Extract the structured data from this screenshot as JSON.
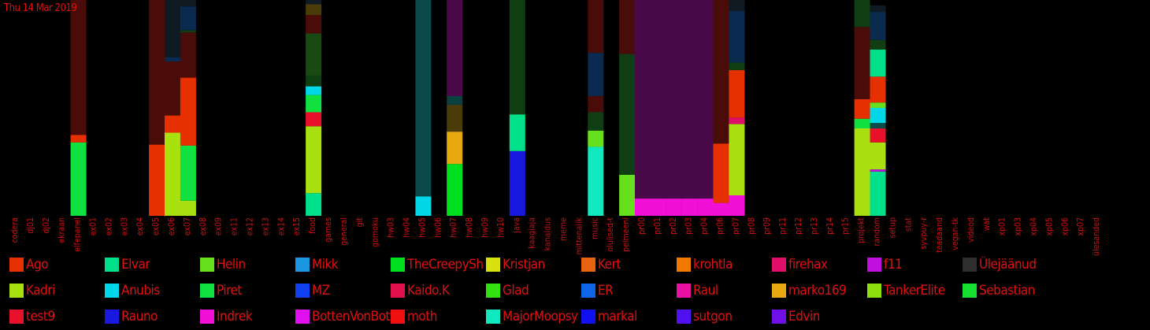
{
  "date": "Thu 14 Mar 2019",
  "chart_data": {
    "type": "bar",
    "stacked": true,
    "normalized": true,
    "ylim": [
      0,
      1
    ],
    "categories": [
      "codera",
      "dj01",
      "dj02",
      "ekraan",
      "elfepanel",
      "ex01",
      "ex02",
      "ex03",
      "ex04",
      "ex05",
      "ex06",
      "ex07",
      "ex08",
      "ex09",
      "ex11",
      "ex12",
      "ex13",
      "ex14",
      "ex15",
      "food",
      "games",
      "general",
      "git",
      "gomoku",
      "hw03",
      "hw04",
      "hw05",
      "hw06",
      "hw07",
      "hw08",
      "hw09",
      "hw10",
      "java",
      "kaagiaja",
      "kanaldus",
      "meme",
      "mittenaiik",
      "music",
      "olulised-t",
      "pelmeeni",
      "pr00",
      "pr01",
      "pr02",
      "pr03",
      "pr04",
      "pr06",
      "pr07",
      "pr08",
      "pr09",
      "pr11",
      "pr12",
      "pr13",
      "pr14",
      "pr15",
      "projekt",
      "random",
      "setup",
      "stat",
      "syvpuy-r",
      "teadaand",
      "vegan-tk",
      "videod",
      "wat",
      "xp01",
      "xp03",
      "xp04",
      "xp05",
      "xp06",
      "xp07",
      "ülesanded"
    ],
    "bars": [
      {
        "category": "elfepanel",
        "segments": [
          {
            "name": "Piret",
            "value": 0.34
          },
          {
            "name": "Ago",
            "value": 0.035
          },
          {
            "name": "(dark red)",
            "value": 0.625
          }
        ]
      },
      {
        "category": "ex05",
        "segments": [
          {
            "name": "Ago",
            "value": 0.33
          },
          {
            "name": "(dark red)",
            "value": 0.67
          }
        ]
      },
      {
        "category": "ex06",
        "segments": [
          {
            "name": "Kadri",
            "value": 0.385
          },
          {
            "name": "Ago",
            "value": 0.08
          },
          {
            "name": "(dark red)",
            "value": 0.25
          },
          {
            "name": "(navy)",
            "value": 0.02
          },
          {
            "name": "(dark)",
            "value": 0.265
          }
        ]
      },
      {
        "category": "ex07",
        "segments": [
          {
            "name": "Kadri",
            "value": 0.07
          },
          {
            "name": "Piret",
            "value": 0.255
          },
          {
            "name": "Ago",
            "value": 0.315
          },
          {
            "name": "(dark red)",
            "value": 0.21
          },
          {
            "name": "(dark green)",
            "value": 0.01
          },
          {
            "name": "(navy)",
            "value": 0.11
          },
          {
            "name": "(dark)",
            "value": 0.03
          }
        ]
      },
      {
        "category": "food",
        "segments": [
          {
            "name": "Elvar",
            "value": 0.105
          },
          {
            "name": "Kadri",
            "value": 0.31
          },
          {
            "name": "test9",
            "value": 0.065
          },
          {
            "name": "Piret",
            "value": 0.08
          },
          {
            "name": "Anubis",
            "value": 0.04
          },
          {
            "name": "(dark green)",
            "value": 0.05
          },
          {
            "name": "(dark green 2)",
            "value": 0.195
          },
          {
            "name": "(dark red)",
            "value": 0.085
          },
          {
            "name": "(olive)",
            "value": 0.05
          },
          {
            "name": "(dark)",
            "value": 0.02
          }
        ]
      },
      {
        "category": "hw05",
        "segments": [
          {
            "name": "Anubis",
            "value": 0.09
          },
          {
            "name": "(teal)",
            "value": 0.91
          }
        ]
      },
      {
        "category": "hw07",
        "segments": [
          {
            "name": "TheCreepySh",
            "value": 0.24
          },
          {
            "name": "marko169",
            "value": 0.15
          },
          {
            "name": "(olive)",
            "value": 0.125
          },
          {
            "name": "(dark teal)",
            "value": 0.04
          },
          {
            "name": "(purple)",
            "value": 0.445
          }
        ]
      },
      {
        "category": "java",
        "segments": [
          {
            "name": "Rauno",
            "value": 0.3
          },
          {
            "name": "Elvar",
            "value": 0.17
          },
          {
            "name": "(dark green)",
            "value": 0.53
          }
        ]
      },
      {
        "category": "music",
        "segments": [
          {
            "name": "MajorMoopsy",
            "value": 0.32
          },
          {
            "name": "Helin",
            "value": 0.075
          },
          {
            "name": "(dark green)",
            "value": 0.085
          },
          {
            "name": "(dark red)",
            "value": 0.075
          },
          {
            "name": "(navy)",
            "value": 0.2
          },
          {
            "name": "(dark red)",
            "value": 0.245
          }
        ]
      },
      {
        "category": "pelmeeni",
        "segments": [
          {
            "name": "Helin",
            "value": 0.19
          },
          {
            "name": "(dark green)",
            "value": 0.56
          },
          {
            "name": "(dark red)",
            "value": 0.25
          }
        ]
      },
      {
        "category": "pr00",
        "segments": [
          {
            "name": "Indrek",
            "value": 0.08
          },
          {
            "name": "(purple)",
            "value": 0.92
          }
        ]
      },
      {
        "category": "pr01",
        "segments": [
          {
            "name": "Indrek",
            "value": 0.08
          },
          {
            "name": "(purple)",
            "value": 0.92
          }
        ]
      },
      {
        "category": "pr02",
        "segments": [
          {
            "name": "Indrek",
            "value": 0.08
          },
          {
            "name": "(purple)",
            "value": 0.92
          }
        ]
      },
      {
        "category": "pr03",
        "segments": [
          {
            "name": "Indrek",
            "value": 0.08
          },
          {
            "name": "(purple)",
            "value": 0.92
          }
        ]
      },
      {
        "category": "pr04",
        "segments": [
          {
            "name": "Indrek",
            "value": 0.08
          },
          {
            "name": "(purple)",
            "value": 0.92
          }
        ]
      },
      {
        "category": "pr06",
        "segments": [
          {
            "name": "Indrek",
            "value": 0.06
          },
          {
            "name": "Ago",
            "value": 0.275
          },
          {
            "name": "(dark red)",
            "value": 0.665
          }
        ]
      },
      {
        "category": "pr07",
        "segments": [
          {
            "name": "Indrek",
            "value": 0.095
          },
          {
            "name": "Kadri",
            "value": 0.33
          },
          {
            "name": "firehax",
            "value": 0.03
          },
          {
            "name": "Ago",
            "value": 0.22
          },
          {
            "name": "(dark green)",
            "value": 0.035
          },
          {
            "name": "(navy)",
            "value": 0.24
          },
          {
            "name": "(dark)",
            "value": 0.05
          }
        ]
      },
      {
        "category": "projekt",
        "segments": [
          {
            "name": "Kadri",
            "value": 0.405
          },
          {
            "name": "Piret",
            "value": 0.045
          },
          {
            "name": "Ago",
            "value": 0.09
          },
          {
            "name": "(dark red)",
            "value": 0.335
          },
          {
            "name": "(dark green)",
            "value": 0.125
          }
        ]
      },
      {
        "category": "random",
        "segments": [
          {
            "name": "Elvar",
            "value": 0.205
          },
          {
            "name": "f11",
            "value": 0.01
          },
          {
            "name": "Kadri",
            "value": 0.125
          },
          {
            "name": "test9",
            "value": 0.065
          },
          {
            "name": "(teal)",
            "value": 0.025
          },
          {
            "name": "Anubis",
            "value": 0.07
          },
          {
            "name": "Helin",
            "value": 0.025
          },
          {
            "name": "Ago",
            "value": 0.12
          },
          {
            "name": "Elvar",
            "value": 0.125
          },
          {
            "name": "(dark green)",
            "value": 0.045
          },
          {
            "name": "(navy)",
            "value": 0.13
          },
          {
            "name": "(dark)",
            "value": 0.03
          }
        ]
      }
    ]
  },
  "legend": [
    {
      "name": "Ago",
      "color": "#e63000"
    },
    {
      "name": "Elvar",
      "color": "#00e08a"
    },
    {
      "name": "Helin",
      "color": "#66e01c"
    },
    {
      "name": "Mikk",
      "color": "#1a96e0"
    },
    {
      "name": "TheCreepySh",
      "color": "#00e020"
    },
    {
      "name": "Kristjan",
      "color": "#d8e010"
    },
    {
      "name": "Kert",
      "color": "#e86410"
    },
    {
      "name": "krohtla",
      "color": "#f07a00"
    },
    {
      "name": "firehax",
      "color": "#e0106a"
    },
    {
      "name": "f11",
      "color": "#c010e0"
    },
    {
      "name": "Ülejäänud",
      "color": "#2e2e2e"
    },
    {
      "name": "Kadri",
      "color": "#a8e010"
    },
    {
      "name": "Anubis",
      "color": "#00d8e8"
    },
    {
      "name": "Piret",
      "color": "#10e040"
    },
    {
      "name": "MZ",
      "color": "#1040f0"
    },
    {
      "name": "Kaido.K",
      "color": "#e0104a"
    },
    {
      "name": "Glad",
      "color": "#34e010"
    },
    {
      "name": "ER",
      "color": "#1064e8"
    },
    {
      "name": "Raul",
      "color": "#e810a0"
    },
    {
      "name": "marko169",
      "color": "#e8a810"
    },
    {
      "name": "TankerElite",
      "color": "#8ce010"
    },
    {
      "name": "Sebastian",
      "color": "#18e030"
    },
    {
      "name": "test9",
      "color": "#e8102a"
    },
    {
      "name": "Rauno",
      "color": "#1818e0"
    },
    {
      "name": "Indrek",
      "color": "#f010d8"
    },
    {
      "name": "BottenVonBot",
      "color": "#e010f0"
    },
    {
      "name": "moth",
      "color": "#f01010"
    },
    {
      "name": "MajorMoopsy",
      "color": "#10e8c0"
    },
    {
      "name": "markal",
      "color": "#1010f0"
    },
    {
      "name": "sutgon",
      "color": "#5010f0"
    },
    {
      "name": "Edvin",
      "color": "#7010e8"
    }
  ],
  "other_colors": {
    "(dark red)": "#4a0c08",
    "(navy)": "#0a2a50",
    "(dark)": "#101a22",
    "(dark green)": "#0e3e12",
    "(dark green 2)": "#1a4a14",
    "(olive)": "#4a3c08",
    "(teal)": "#0a4a4a",
    "(dark teal)": "#0a4040",
    "(purple)": "#4a0a4a"
  }
}
